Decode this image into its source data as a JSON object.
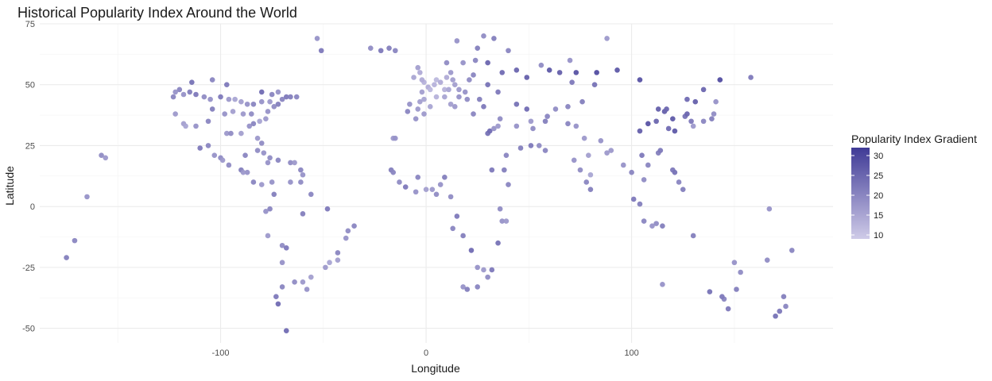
{
  "chart_data": {
    "type": "scatter",
    "title": "Historical Popularity Index Around the World",
    "xlabel": "Longitude",
    "ylabel": "Latitude",
    "xlim": [
      -188,
      198
    ],
    "ylim": [
      -56,
      75
    ],
    "x_ticks": [
      -100,
      0,
      100
    ],
    "x_tick_labels": [
      "-100",
      "0",
      "100"
    ],
    "y_ticks": [
      -50,
      -25,
      0,
      25,
      50,
      75
    ],
    "y_tick_labels": [
      "-50",
      "-25",
      "0",
      "25",
      "50",
      "75"
    ],
    "grid": true,
    "legend": {
      "title": "Popularity Index Gradient",
      "placement": "right",
      "min": 9,
      "max": 32,
      "ticks": [
        10,
        15,
        20,
        25,
        30
      ],
      "tick_labels": [
        "10",
        "15",
        "20",
        "25",
        "30"
      ],
      "low_color": "#cfcbe8",
      "high_color": "#3f3a96"
    },
    "points": [
      [
        -120,
        48,
        20
      ],
      [
        -118,
        46,
        18
      ],
      [
        -115,
        47,
        21
      ],
      [
        -112,
        46,
        22
      ],
      [
        -108,
        45,
        19
      ],
      [
        -105,
        44,
        18
      ],
      [
        -100,
        45,
        22
      ],
      [
        -96,
        44,
        17
      ],
      [
        -93,
        44,
        15
      ],
      [
        -90,
        43,
        16
      ],
      [
        -87,
        42,
        18
      ],
      [
        -84,
        42,
        20
      ],
      [
        -80,
        43,
        18
      ],
      [
        -76,
        43,
        17
      ],
      [
        -74,
        41,
        19
      ],
      [
        -72,
        42,
        21
      ],
      [
        -70,
        44,
        20
      ],
      [
        -68,
        45,
        22
      ],
      [
        -122,
        38,
        17
      ],
      [
        -118,
        34,
        16
      ],
      [
        -117,
        33,
        15
      ],
      [
        -112,
        33,
        18
      ],
      [
        -106,
        35,
        20
      ],
      [
        -97,
        30,
        17
      ],
      [
        -95,
        30,
        19
      ],
      [
        -90,
        30,
        16
      ],
      [
        -86,
        33,
        18
      ],
      [
        -84,
        34,
        20
      ],
      [
        -82,
        28,
        17
      ],
      [
        -80,
        26,
        19
      ],
      [
        -81,
        35,
        15
      ],
      [
        -78,
        36,
        17
      ],
      [
        -77,
        39,
        18
      ],
      [
        -104,
        40,
        21
      ],
      [
        -98,
        38,
        18
      ],
      [
        -94,
        39,
        16
      ],
      [
        -89,
        38,
        17
      ],
      [
        -85,
        38,
        19
      ],
      [
        -123,
        45,
        20
      ],
      [
        -122,
        47,
        18
      ],
      [
        -114,
        51,
        23
      ],
      [
        -104,
        52,
        20
      ],
      [
        -97,
        50,
        22
      ],
      [
        -80,
        47,
        24
      ],
      [
        -75,
        46,
        20
      ],
      [
        -72,
        47,
        18
      ],
      [
        -66,
        45,
        21
      ],
      [
        -63,
        45,
        20
      ],
      [
        -100,
        20,
        19
      ],
      [
        -99,
        19,
        17
      ],
      [
        -103,
        21,
        18
      ],
      [
        -106,
        25,
        20
      ],
      [
        -110,
        24,
        22
      ],
      [
        -96,
        17,
        19
      ],
      [
        -90,
        15,
        21
      ],
      [
        -87,
        14,
        18
      ],
      [
        -84,
        10,
        20
      ],
      [
        -80,
        9,
        17
      ],
      [
        -75,
        10,
        18
      ],
      [
        -74,
        5,
        21
      ],
      [
        -76,
        -1,
        20
      ],
      [
        -78,
        -2,
        18
      ],
      [
        -77,
        -12,
        17
      ],
      [
        -70,
        -16,
        19
      ],
      [
        -68,
        -17,
        22
      ],
      [
        -70,
        -23,
        18
      ],
      [
        -70,
        -33,
        20
      ],
      [
        -73,
        -37,
        22
      ],
      [
        -72,
        -40,
        24
      ],
      [
        -68,
        -51,
        24
      ],
      [
        -58,
        -34,
        18
      ],
      [
        -60,
        -31,
        17
      ],
      [
        -64,
        -31,
        19
      ],
      [
        -56,
        -29,
        16
      ],
      [
        -49,
        -25,
        17
      ],
      [
        -47,
        -23,
        15
      ],
      [
        -43,
        -22,
        16
      ],
      [
        -43,
        -19,
        20
      ],
      [
        -39,
        -13,
        18
      ],
      [
        -38,
        -10,
        19
      ],
      [
        -35,
        -8,
        20
      ],
      [
        -48,
        -1,
        22
      ],
      [
        -60,
        -3,
        21
      ],
      [
        -66,
        10,
        18
      ],
      [
        -61,
        10,
        19
      ],
      [
        -56,
        5,
        20
      ],
      [
        -53,
        69,
        18
      ],
      [
        -51,
        64,
        22
      ],
      [
        -158,
        21,
        19
      ],
      [
        -156,
        20,
        17
      ],
      [
        -165,
        4,
        18
      ],
      [
        -171,
        -14,
        20
      ],
      [
        -175,
        -21,
        21
      ],
      [
        -22,
        64,
        22
      ],
      [
        -18,
        65,
        21
      ],
      [
        -15,
        64,
        20
      ],
      [
        -16,
        28,
        17
      ],
      [
        -15,
        28,
        18
      ],
      [
        -17,
        15,
        21
      ],
      [
        -16,
        14,
        20
      ],
      [
        -13,
        10,
        19
      ],
      [
        -10,
        8,
        22
      ],
      [
        -5,
        6,
        18
      ],
      [
        -4,
        12,
        20
      ],
      [
        0,
        7,
        16
      ],
      [
        3,
        7,
        17
      ],
      [
        5,
        5,
        19
      ],
      [
        7,
        9,
        18
      ],
      [
        9,
        12,
        21
      ],
      [
        12,
        4,
        19
      ],
      [
        13,
        -9,
        20
      ],
      [
        15,
        -4,
        22
      ],
      [
        18,
        -12,
        21
      ],
      [
        22,
        -18,
        24
      ],
      [
        25,
        -25,
        18
      ],
      [
        28,
        -26,
        17
      ],
      [
        30,
        -29,
        19
      ],
      [
        25,
        -33,
        20
      ],
      [
        18,
        -33,
        18
      ],
      [
        20,
        -34,
        21
      ],
      [
        32,
        -26,
        22
      ],
      [
        35,
        -15,
        23
      ],
      [
        36,
        -1,
        19
      ],
      [
        37,
        -6,
        18
      ],
      [
        39,
        -6,
        17
      ],
      [
        40,
        9,
        20
      ],
      [
        38,
        15,
        21
      ],
      [
        32,
        15,
        22
      ],
      [
        30,
        30,
        23
      ],
      [
        31,
        31,
        24
      ],
      [
        33,
        32,
        18
      ],
      [
        35,
        33,
        17
      ],
      [
        36,
        36,
        19
      ],
      [
        39,
        21,
        20
      ],
      [
        46,
        24,
        21
      ],
      [
        51,
        25,
        22
      ],
      [
        55,
        25,
        19
      ],
      [
        58,
        23,
        20
      ],
      [
        44,
        33,
        18
      ],
      [
        51,
        35,
        17
      ],
      [
        52,
        32,
        19
      ],
      [
        58,
        35,
        21
      ],
      [
        69,
        34,
        20
      ],
      [
        73,
        33,
        18
      ],
      [
        77,
        28,
        17
      ],
      [
        79,
        21,
        16
      ],
      [
        80,
        13,
        15
      ],
      [
        88,
        22,
        17
      ],
      [
        72,
        19,
        18
      ],
      [
        75,
        15,
        19
      ],
      [
        78,
        10,
        20
      ],
      [
        80,
        7,
        21
      ],
      [
        85,
        27,
        18
      ],
      [
        90,
        23,
        17
      ],
      [
        96,
        17,
        18
      ],
      [
        100,
        14,
        20
      ],
      [
        101,
        3,
        22
      ],
      [
        104,
        1,
        21
      ],
      [
        106,
        -6,
        20
      ],
      [
        112,
        -7,
        19
      ],
      [
        110,
        -8,
        18
      ],
      [
        115,
        -8,
        21
      ],
      [
        120,
        15,
        22
      ],
      [
        121,
        14,
        23
      ],
      [
        123,
        10,
        20
      ],
      [
        125,
        7,
        21
      ],
      [
        106,
        11,
        19
      ],
      [
        105,
        21,
        22
      ],
      [
        108,
        17,
        20
      ],
      [
        113,
        22,
        21
      ],
      [
        114,
        23,
        22
      ],
      [
        116,
        39,
        26
      ],
      [
        117,
        40,
        25
      ],
      [
        121,
        31,
        27
      ],
      [
        118,
        32,
        24
      ],
      [
        104,
        31,
        26
      ],
      [
        108,
        34,
        28
      ],
      [
        112,
        35,
        25
      ],
      [
        113,
        40,
        26
      ],
      [
        120,
        36,
        27
      ],
      [
        126,
        37,
        23
      ],
      [
        127,
        38,
        25
      ],
      [
        129,
        35,
        22
      ],
      [
        127,
        44,
        24
      ],
      [
        135,
        35,
        20
      ],
      [
        139,
        36,
        21
      ],
      [
        140,
        38,
        19
      ],
      [
        141,
        43,
        18
      ],
      [
        130,
        33,
        17
      ],
      [
        145,
        -38,
        20
      ],
      [
        151,
        -34,
        21
      ],
      [
        153,
        -27,
        19
      ],
      [
        144,
        -37,
        22
      ],
      [
        138,
        -35,
        23
      ],
      [
        115,
        -32,
        18
      ],
      [
        130,
        -12,
        21
      ],
      [
        147,
        -42,
        22
      ],
      [
        150,
        -23,
        18
      ],
      [
        175,
        -41,
        20
      ],
      [
        174,
        -37,
        21
      ],
      [
        172,
        -43,
        22
      ],
      [
        170,
        -45,
        23
      ],
      [
        166,
        -22,
        19
      ],
      [
        178,
        -18,
        20
      ],
      [
        167,
        -1,
        18
      ],
      [
        -9,
        39,
        20
      ],
      [
        -8,
        42,
        18
      ],
      [
        -4,
        40,
        17
      ],
      [
        -3,
        43,
        16
      ],
      [
        2,
        41,
        15
      ],
      [
        -1,
        38,
        17
      ],
      [
        -5,
        36,
        18
      ],
      [
        -2,
        47,
        16
      ],
      [
        1,
        49,
        14
      ],
      [
        2,
        48,
        12
      ],
      [
        5,
        45,
        13
      ],
      [
        -1,
        44,
        15
      ],
      [
        4,
        50,
        13
      ],
      [
        5,
        52,
        12
      ],
      [
        7,
        51,
        14
      ],
      [
        9,
        48,
        13
      ],
      [
        11,
        48,
        15
      ],
      [
        13,
        52,
        16
      ],
      [
        10,
        53,
        14
      ],
      [
        12,
        55,
        17
      ],
      [
        18,
        59,
        18
      ],
      [
        10,
        59,
        19
      ],
      [
        24,
        60,
        20
      ],
      [
        25,
        65,
        21
      ],
      [
        -6,
        53,
        15
      ],
      [
        -3,
        55,
        14
      ],
      [
        -1,
        51,
        13
      ],
      [
        -2,
        52,
        14
      ],
      [
        -4,
        57,
        16
      ],
      [
        14,
        50,
        16
      ],
      [
        16,
        48,
        17
      ],
      [
        19,
        47,
        18
      ],
      [
        21,
        52,
        19
      ],
      [
        23,
        54,
        20
      ],
      [
        26,
        44,
        21
      ],
      [
        28,
        41,
        22
      ],
      [
        23,
        38,
        20
      ],
      [
        14,
        41,
        17
      ],
      [
        12,
        42,
        16
      ],
      [
        9,
        45,
        15
      ],
      [
        16,
        45,
        18
      ],
      [
        20,
        44,
        19
      ],
      [
        30,
        50,
        23
      ],
      [
        37,
        55,
        24
      ],
      [
        30,
        59,
        25
      ],
      [
        35,
        47,
        22
      ],
      [
        44,
        42,
        23
      ],
      [
        49,
        40,
        24
      ],
      [
        44,
        56,
        25
      ],
      [
        49,
        53,
        26
      ],
      [
        60,
        56,
        27
      ],
      [
        65,
        55,
        26
      ],
      [
        73,
        55,
        28
      ],
      [
        83,
        55,
        29
      ],
      [
        93,
        56,
        27
      ],
      [
        104,
        52,
        28
      ],
      [
        131,
        43,
        26
      ],
      [
        135,
        48,
        25
      ],
      [
        143,
        52,
        29
      ],
      [
        158,
        53,
        22
      ],
      [
        82,
        50,
        23
      ],
      [
        76,
        43,
        21
      ],
      [
        69,
        41,
        20
      ],
      [
        71,
        51,
        22
      ],
      [
        63,
        40,
        19
      ],
      [
        59,
        37,
        20
      ],
      [
        88,
        69,
        17
      ],
      [
        70,
        60,
        18
      ],
      [
        56,
        58,
        19
      ],
      [
        40,
        64,
        20
      ],
      [
        33,
        69,
        21
      ],
      [
        28,
        70,
        19
      ],
      [
        15,
        68,
        18
      ],
      [
        -27,
        65,
        19
      ],
      [
        -77,
        18,
        18
      ],
      [
        -72,
        19,
        20
      ],
      [
        -66,
        18,
        19
      ],
      [
        -64,
        18,
        17
      ],
      [
        -60,
        13,
        18
      ],
      [
        -61,
        15,
        20
      ],
      [
        -82,
        23,
        19
      ],
      [
        -88,
        21,
        20
      ],
      [
        -89,
        14,
        17
      ],
      [
        -79,
        22,
        18
      ],
      [
        -76,
        20,
        19
      ]
    ],
    "point_color_note": "color encodes popularity index"
  }
}
